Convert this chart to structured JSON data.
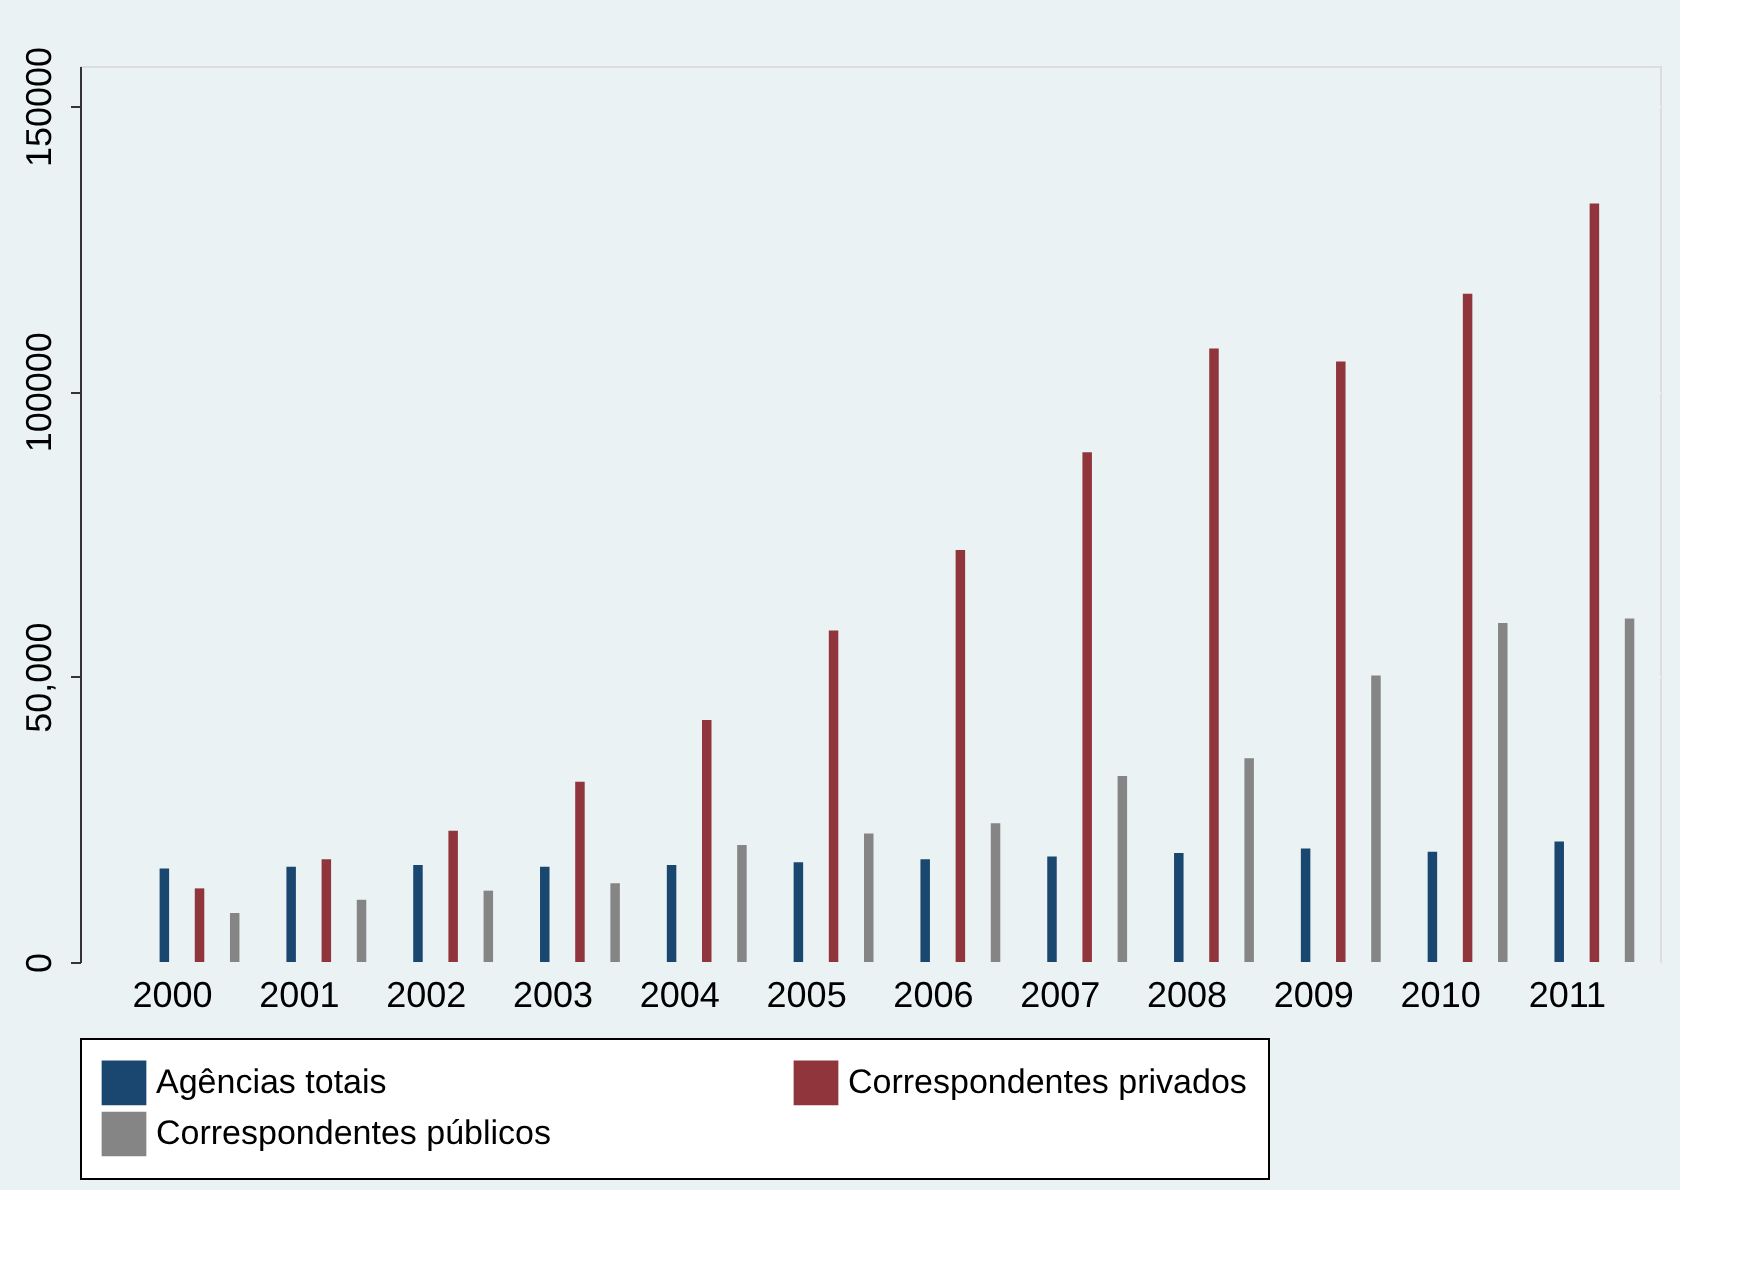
{
  "chart_data": {
    "type": "bar",
    "categories": [
      "2000",
      "2001",
      "2002",
      "2003",
      "2004",
      "2005",
      "2006",
      "2007",
      "2008",
      "2009",
      "2010",
      "2011"
    ],
    "series": [
      {
        "name": "Agências totais",
        "color": "#1a476f",
        "values": [
          16400,
          16700,
          17000,
          16700,
          17000,
          17500,
          18000,
          18500,
          19100,
          19900,
          19300,
          21100
        ]
      },
      {
        "name": "Correspondentes privados",
        "color": "#90353b",
        "values": [
          12900,
          18000,
          23000,
          31600,
          42400,
          58100,
          72200,
          89300,
          107500,
          105200,
          117100,
          132900
        ]
      },
      {
        "name": "Correspondentes públicos",
        "color": "#858585",
        "values": [
          8600,
          10900,
          12500,
          13800,
          20500,
          22500,
          24300,
          32600,
          35700,
          50200,
          59400,
          60200
        ]
      }
    ],
    "ylim": [
      0,
      157000
    ],
    "yticks": [
      0,
      {
        "value": 50000,
        "label": "50,000"
      },
      100000,
      150000
    ],
    "grid": "y",
    "legend": "bottom"
  }
}
